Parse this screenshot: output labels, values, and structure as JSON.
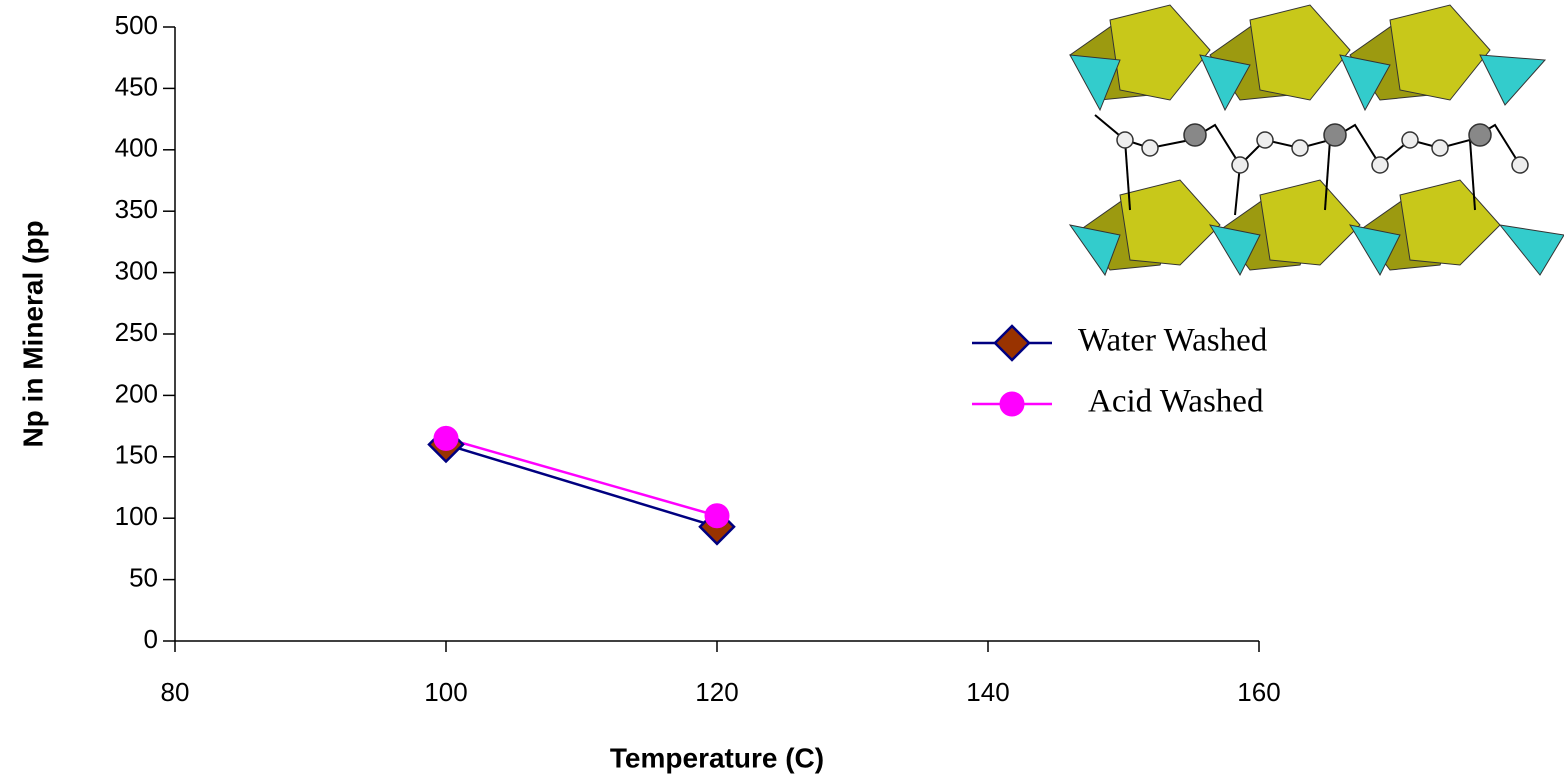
{
  "chart_data": {
    "type": "line",
    "x_label": "Temperature (C)",
    "y_label": "Np in Mineral (pp",
    "xlim": [
      80,
      160
    ],
    "xticks": [
      80,
      100,
      120,
      140,
      160
    ],
    "ylim": [
      0,
      500
    ],
    "yticks": [
      0,
      50,
      100,
      150,
      200,
      250,
      300,
      350,
      400,
      450,
      500
    ],
    "series": [
      {
        "name": "Water Washed",
        "color": "#000080",
        "marker": "diamond",
        "marker_color": "#993300",
        "x": [
          100,
          120
        ],
        "values": [
          160,
          93
        ]
      },
      {
        "name": "Acid Washed",
        "color": "#ff00ff",
        "marker": "circle",
        "marker_color": "#ff00ff",
        "x": [
          100,
          120
        ],
        "values": [
          165,
          102
        ]
      }
    ]
  }
}
